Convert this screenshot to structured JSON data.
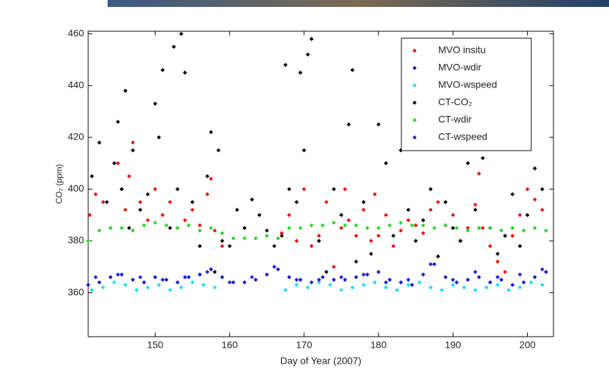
{
  "chart_data": {
    "type": "scatter",
    "xlabel": "Day of Year (2007)",
    "ylabel": "CO₂ (ppm)",
    "xlim": [
      141,
      203.5
    ],
    "ylim": [
      343,
      461
    ],
    "xticks": [
      150,
      160,
      170,
      180,
      190,
      200
    ],
    "yticks": [
      360,
      380,
      400,
      420,
      440,
      460
    ],
    "legend": "upper right",
    "series": [
      {
        "name": "MVO insitu",
        "color": "#ee1111",
        "x": [
          141.2,
          142,
          143,
          144,
          145,
          145.5,
          146,
          146.5,
          147,
          148,
          149,
          150,
          151,
          152,
          153,
          154,
          155,
          156,
          157,
          157.5,
          158,
          159,
          167,
          168,
          169,
          170,
          171,
          172,
          173,
          174,
          175,
          175.5,
          176,
          177,
          178,
          179,
          179.5,
          180,
          181,
          182,
          183,
          184,
          185,
          186,
          187,
          188,
          189,
          190,
          191,
          192,
          193,
          193.5,
          194,
          195,
          196,
          197,
          198,
          199,
          200,
          201,
          202
        ],
        "values": [
          390,
          398,
          395,
          385,
          410,
          400,
          392,
          405,
          418,
          395,
          388,
          400,
          390,
          395,
          385,
          388,
          392,
          386,
          398,
          404,
          384,
          378,
          383,
          390,
          380,
          400,
          378,
          382,
          395,
          370,
          385,
          400,
          388,
          382,
          392,
          380,
          398,
          382,
          390,
          378,
          384,
          388,
          386,
          383,
          392,
          395,
          386,
          390,
          380,
          385,
          394,
          406,
          385,
          378,
          372,
          368,
          382,
          390,
          400,
          396,
          392
        ]
      },
      {
        "name": "MVO-wdir",
        "color": "#1414c8",
        "x": [
          141,
          142.5,
          144,
          145.5,
          147,
          148.5,
          150,
          151.5,
          153,
          154.5,
          156,
          157.5,
          159,
          160.5,
          162,
          163.5,
          165,
          166.5,
          168,
          169.5,
          171,
          172.5,
          174,
          175.5,
          177,
          178.5,
          180,
          181.5,
          183,
          184.5,
          186,
          187.5,
          189,
          190.5,
          192,
          193.5,
          195,
          196.5,
          198,
          199.5,
          201,
          202.5
        ],
        "values": [
          363,
          364,
          366,
          367,
          365,
          364,
          366,
          365,
          364,
          366,
          367,
          369,
          366,
          364,
          364,
          365,
          367,
          369,
          366,
          365,
          364,
          366,
          365,
          365,
          366,
          367,
          368,
          365,
          364,
          363,
          367,
          371,
          366,
          364,
          365,
          366,
          364,
          365,
          363,
          364,
          366,
          368
        ]
      },
      {
        "name": "MVO-wspeed",
        "color": "#19e0f0",
        "x": [
          141.5,
          143,
          144.5,
          146,
          147.5,
          149,
          150.5,
          152,
          153.5,
          155,
          156.5,
          158,
          167.5,
          169,
          170.5,
          172,
          173.5,
          175,
          176.5,
          178,
          179.5,
          181,
          182.5,
          184,
          185.5,
          187,
          188.5,
          190,
          191.5,
          193,
          194.5,
          196,
          197.5,
          199,
          200.5,
          202
        ],
        "values": [
          361,
          362,
          364,
          363,
          361,
          362,
          363,
          361,
          362,
          364,
          363,
          362,
          361,
          363,
          362,
          364,
          363,
          361,
          362,
          363,
          364,
          362,
          361,
          363,
          364,
          362,
          361,
          363,
          362,
          361,
          362,
          363,
          361,
          362,
          364,
          363
        ]
      },
      {
        "name": "CT-CO₂",
        "color": "#000000",
        "x": [
          141.5,
          142.5,
          143.5,
          144.5,
          145,
          145.5,
          146,
          146.5,
          147,
          148,
          149,
          150,
          150.5,
          151,
          152,
          152.5,
          153,
          153.5,
          154,
          155,
          156,
          157,
          157.5,
          158,
          158.5,
          159,
          160,
          161,
          162,
          163,
          164,
          165,
          166,
          167,
          167.5,
          168,
          169,
          169.5,
          170,
          170.5,
          171,
          172,
          173,
          174,
          175,
          176,
          176.5,
          177,
          178,
          179,
          180,
          181,
          182,
          183,
          184,
          185,
          186,
          187,
          188,
          189,
          190,
          191,
          192,
          193,
          194,
          195,
          196,
          197,
          198,
          199,
          200,
          201,
          202
        ],
        "values": [
          405,
          418,
          395,
          410,
          426,
          400,
          438,
          385,
          415,
          392,
          398,
          433,
          420,
          446,
          385,
          455,
          400,
          460,
          445,
          395,
          378,
          405,
          422,
          368,
          415,
          380,
          378,
          392,
          385,
          396,
          390,
          384,
          378,
          382,
          448,
          400,
          395,
          445,
          415,
          452,
          458,
          380,
          368,
          400,
          390,
          425,
          446,
          372,
          395,
          375,
          425,
          410,
          382,
          415,
          392,
          380,
          388,
          400,
          374,
          395,
          385,
          380,
          410,
          392,
          412,
          385,
          375,
          382,
          398,
          378,
          390,
          408,
          400
        ]
      },
      {
        "name": "CT-wdir",
        "color": "#2bd62b",
        "x": [
          141,
          142.5,
          144,
          145.5,
          147,
          148.5,
          150,
          151.5,
          153,
          154.5,
          156,
          157.5,
          159,
          160.5,
          162,
          163.5,
          165,
          166.5,
          168,
          169.5,
          171,
          172.5,
          174,
          175.5,
          177,
          178.5,
          180,
          181.5,
          183,
          184.5,
          186,
          187.5,
          189,
          190.5,
          192,
          193.5,
          195,
          196.5,
          198,
          199.5,
          201,
          202.5
        ],
        "values": [
          380,
          384,
          385,
          385,
          384,
          386,
          387,
          386,
          385,
          386,
          384,
          385,
          383,
          381,
          381,
          381,
          382,
          381,
          385,
          385,
          386,
          386,
          387,
          386,
          386,
          385,
          385,
          386,
          387,
          386,
          386,
          385,
          386,
          385,
          384,
          385,
          385,
          384,
          385,
          384,
          385,
          384
        ]
      },
      {
        "name": "CT-wspeed",
        "color": "#2020d8",
        "x": [
          142,
          145,
          148,
          151,
          154,
          157,
          160,
          163,
          166,
          169,
          172,
          175,
          178,
          181,
          184,
          187,
          190,
          193,
          196,
          199,
          202
        ],
        "values": [
          366,
          367,
          366,
          365,
          366,
          368,
          364,
          366,
          370,
          365,
          365,
          366,
          367,
          364,
          365,
          371,
          365,
          368,
          366,
          367,
          369
        ]
      }
    ]
  }
}
